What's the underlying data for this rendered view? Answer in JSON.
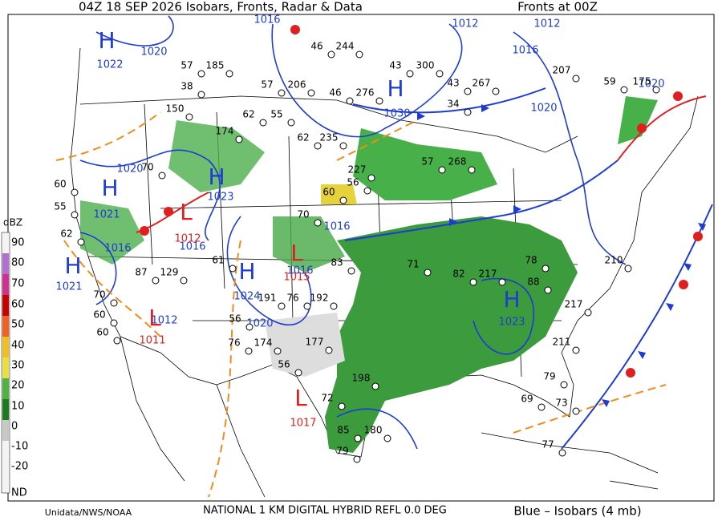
{
  "header": {
    "title": "04Z   18 SEP  2026   Isobars, Fronts, Radar & Data",
    "fronts": "Fronts at 00Z"
  },
  "scale": {
    "unit": "dBZ",
    "labels": [
      "90",
      "80",
      "70",
      "60",
      "50",
      "40",
      "30",
      "20",
      "10",
      "0",
      "-10",
      "-20",
      "ND"
    ]
  },
  "centers": [
    {
      "label": "H",
      "value": "1022"
    },
    {
      "label": "H",
      "value": "1021"
    },
    {
      "label": "H",
      "value": "1021"
    },
    {
      "label": "H",
      "value": "1023"
    },
    {
      "label": "H",
      "value": "1024"
    },
    {
      "label": "H",
      "value": "1030"
    },
    {
      "label": "H",
      "value": "1023"
    },
    {
      "label": "L",
      "value": "1015"
    },
    {
      "label": "L",
      "value": "1011"
    },
    {
      "label": "L",
      "value": "1017"
    },
    {
      "label": "L",
      "value": "1012"
    }
  ],
  "isobars": [
    "1016",
    "1012",
    "1012",
    "1016",
    "1020",
    "1020",
    "1020",
    "1020",
    "1016",
    "1016",
    "1016",
    "1020",
    "1012",
    "1016"
  ],
  "stations": [
    "57",
    "185",
    "38",
    "46",
    "244",
    "43",
    "300",
    "57",
    "206",
    "46",
    "276",
    "43",
    "267",
    "34",
    "207",
    "59",
    "175",
    "62",
    "55",
    "174",
    "62",
    "235",
    "56",
    "227",
    "57",
    "268",
    "60",
    "70",
    "83",
    "71",
    "82",
    "217",
    "78",
    "210",
    "88",
    "217",
    "61",
    "129",
    "87",
    "191",
    "76",
    "192",
    "56",
    "70",
    "60",
    "60",
    "177",
    "174",
    "76",
    "56",
    "198",
    "72",
    "85",
    "180",
    "79",
    "79",
    "69",
    "73",
    "77",
    "211",
    "60",
    "55",
    "62",
    "150",
    "70"
  ],
  "footer": {
    "credit": "Unidata/NWS/NOAA",
    "product": "NATIONAL 1 KM DIGITAL HYBRID REFL 0.0 DEG",
    "legend": "Blue – Isobars (4 mb)"
  }
}
